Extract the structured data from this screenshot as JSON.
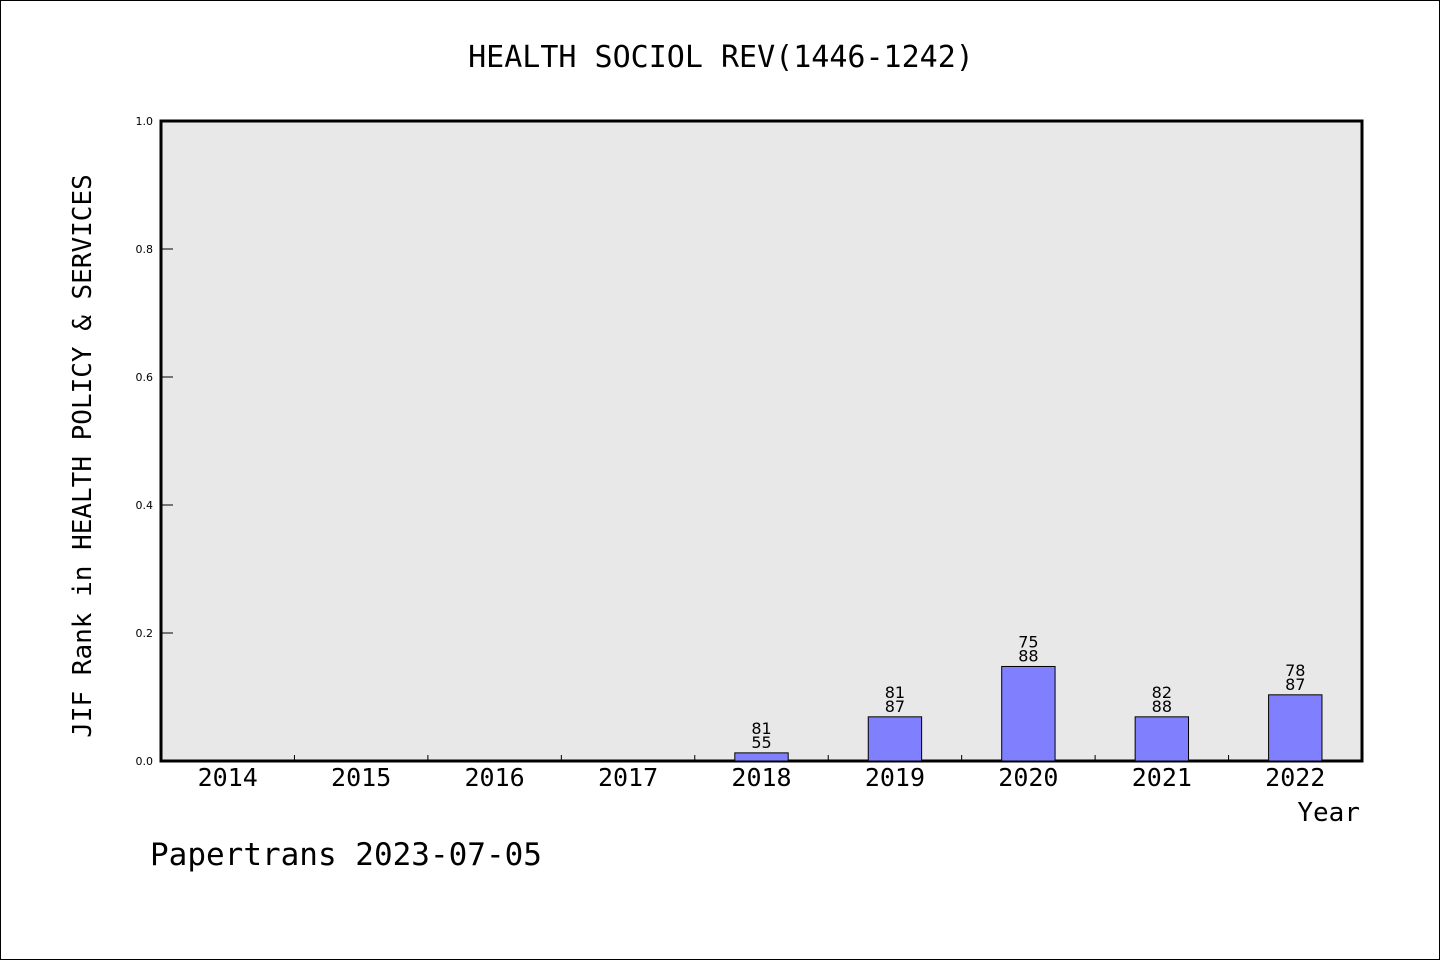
{
  "footer": "Papertrans 2023-07-05",
  "chart_data": {
    "type": "bar",
    "title": "HEALTH SOCIOL REV(1446-1242)",
    "xlabel": "Year",
    "ylabel": "JIF Rank in HEALTH POLICY & SERVICES",
    "ylim": [
      0,
      1.0
    ],
    "yticks": [
      "0.0",
      "0.2",
      "0.4",
      "0.6",
      "0.8",
      "1.0"
    ],
    "categories": [
      "2014",
      "2015",
      "2016",
      "2017",
      "2018",
      "2019",
      "2020",
      "2021",
      "2022"
    ],
    "values": [
      null,
      null,
      null,
      null,
      0.0127,
      0.069,
      0.1477,
      0.069,
      0.1034
    ],
    "bar_labels": [
      null,
      null,
      null,
      null,
      [
        "81",
        "55"
      ],
      [
        "81",
        "87"
      ],
      [
        "75",
        "88"
      ],
      [
        "82",
        "88"
      ],
      [
        "78",
        "87"
      ]
    ],
    "grid": false,
    "colors": {
      "bar": "#8080ff",
      "plot_bg": "#e8e8e8"
    }
  }
}
